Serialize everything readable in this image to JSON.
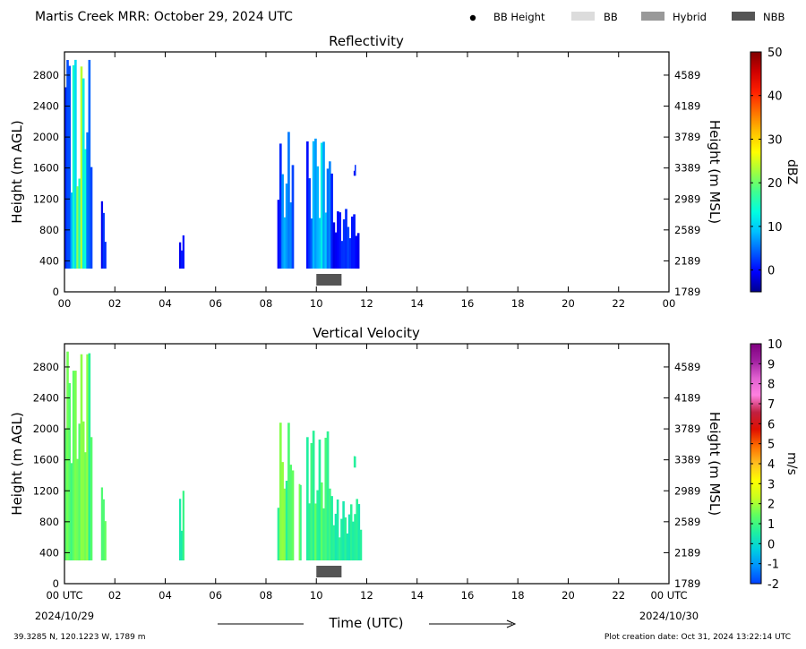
{
  "header": {
    "title": "Martis Creek MRR:  October 29, 2024 UTC"
  },
  "legend": [
    {
      "label": "BB Height",
      "symbol": "dot",
      "color": "#000000"
    },
    {
      "label": "BB",
      "symbol": "box",
      "color": "#dcdcdc"
    },
    {
      "label": "Hybrid",
      "symbol": "box",
      "color": "#999999"
    },
    {
      "label": "NBB",
      "symbol": "box",
      "color": "#555555"
    }
  ],
  "footer": {
    "location": "39.3285 N, 120.1223 W, 1789 m",
    "creation": "Plot creation date: Oct 31, 2024 13:22:14 UTC",
    "start_date": "2024/10/29",
    "end_date": "2024/10/30"
  },
  "chart_data": [
    {
      "type": "heatmap",
      "title": "Reflectivity",
      "ylabel": "Height (m AGL)",
      "ylabel_right": "Height (m MSL)",
      "xlabel": "",
      "x_tick_labels": [
        "00",
        "02",
        "04",
        "06",
        "08",
        "10",
        "12",
        "14",
        "16",
        "18",
        "20",
        "22",
        "00"
      ],
      "xlim": [
        0,
        24
      ],
      "ylim": [
        0,
        3100
      ],
      "y_ticks": [
        0,
        400,
        800,
        1200,
        1600,
        2000,
        2400,
        2800
      ],
      "y_ticks_right": [
        1789,
        2189,
        2589,
        2989,
        3389,
        3789,
        4189,
        4589
      ],
      "colorbar": {
        "label": "dBZ",
        "min": -5,
        "max": 50,
        "ticks": [
          0,
          10,
          20,
          30,
          40,
          50
        ],
        "palette": [
          "#00008f",
          "#0000ff",
          "#0060ff",
          "#00c0ff",
          "#00ffe0",
          "#40ff90",
          "#a0ff40",
          "#ffff00",
          "#ffc000",
          "#ff7000",
          "#ff2000",
          "#d00000",
          "#800000"
        ]
      },
      "nbb_bar": {
        "start_hour": 10.0,
        "end_hour": 11.0
      },
      "echo_columns": [
        {
          "start_hour": 0.0,
          "end_hour": 1.1,
          "top_m": 3000,
          "bottom_m": 300,
          "max_dbz": 28
        },
        {
          "start_hour": 1.45,
          "end_hour": 1.65,
          "top_m": 1250,
          "bottom_m": 300,
          "max_dbz": 5
        },
        {
          "start_hour": 4.55,
          "end_hour": 4.75,
          "top_m": 780,
          "bottom_m": 300,
          "max_dbz": 3
        },
        {
          "start_hour": 8.45,
          "end_hour": 9.1,
          "top_m": 2080,
          "bottom_m": 300,
          "max_dbz": 14
        },
        {
          "start_hour": 9.6,
          "end_hour": 10.65,
          "top_m": 1980,
          "bottom_m": 300,
          "max_dbz": 20
        },
        {
          "start_hour": 10.65,
          "end_hour": 11.7,
          "top_m": 1100,
          "bottom_m": 300,
          "max_dbz": 4
        },
        {
          "start_hour": 11.48,
          "end_hour": 11.56,
          "top_m": 1650,
          "bottom_m": 1500,
          "max_dbz": 3
        }
      ]
    },
    {
      "type": "heatmap",
      "title": "Vertical Velocity",
      "ylabel": "Height (m AGL)",
      "ylabel_right": "Height (m MSL)",
      "xlabel": "Time (UTC)",
      "x_tick_labels": [
        "00 UTC",
        "02",
        "04",
        "06",
        "08",
        "10",
        "12",
        "14",
        "16",
        "18",
        "20",
        "22",
        "00 UTC"
      ],
      "xlim": [
        0,
        24
      ],
      "ylim": [
        0,
        3100
      ],
      "y_ticks": [
        0,
        400,
        800,
        1200,
        1600,
        2000,
        2400,
        2800
      ],
      "y_ticks_right": [
        1789,
        2189,
        2589,
        2989,
        3389,
        3789,
        4189,
        4589
      ],
      "colorbar": {
        "label": "m/s",
        "min": -2,
        "max": 10,
        "ticks": [
          -2,
          -1,
          0,
          1,
          2,
          3,
          4,
          5,
          6,
          7,
          8,
          9,
          10
        ],
        "palette": [
          "#0040ff",
          "#0090ff",
          "#00d0e0",
          "#20f0a0",
          "#60ff60",
          "#c8ff20",
          "#ffff00",
          "#ffc020",
          "#ff7000",
          "#e01000",
          "#c02040",
          "#ff80e0",
          "#e060d0",
          "#a020a0",
          "#800080"
        ]
      },
      "nbb_bar": {
        "start_hour": 10.0,
        "end_hour": 11.0
      },
      "echo_columns": [
        {
          "start_hour": 0.0,
          "end_hour": 1.1,
          "top_m": 3000,
          "bottom_m": 300,
          "max_velocity": 2
        },
        {
          "start_hour": 1.45,
          "end_hour": 1.65,
          "top_m": 1250,
          "bottom_m": 300,
          "max_velocity": 2
        },
        {
          "start_hour": 4.55,
          "end_hour": 4.75,
          "top_m": 1200,
          "bottom_m": 300,
          "max_velocity": 1
        },
        {
          "start_hour": 8.45,
          "end_hour": 9.1,
          "top_m": 2080,
          "bottom_m": 300,
          "max_velocity": 2
        },
        {
          "start_hour": 9.3,
          "end_hour": 9.4,
          "top_m": 1300,
          "bottom_m": 300,
          "max_velocity": 2.5
        },
        {
          "start_hour": 9.6,
          "end_hour": 10.65,
          "top_m": 1980,
          "bottom_m": 300,
          "max_velocity": 1.5
        },
        {
          "start_hour": 10.65,
          "end_hour": 11.8,
          "top_m": 1100,
          "bottom_m": 300,
          "max_velocity": 1
        },
        {
          "start_hour": 11.48,
          "end_hour": 11.56,
          "top_m": 1650,
          "bottom_m": 1500,
          "max_velocity": 1
        }
      ]
    }
  ]
}
